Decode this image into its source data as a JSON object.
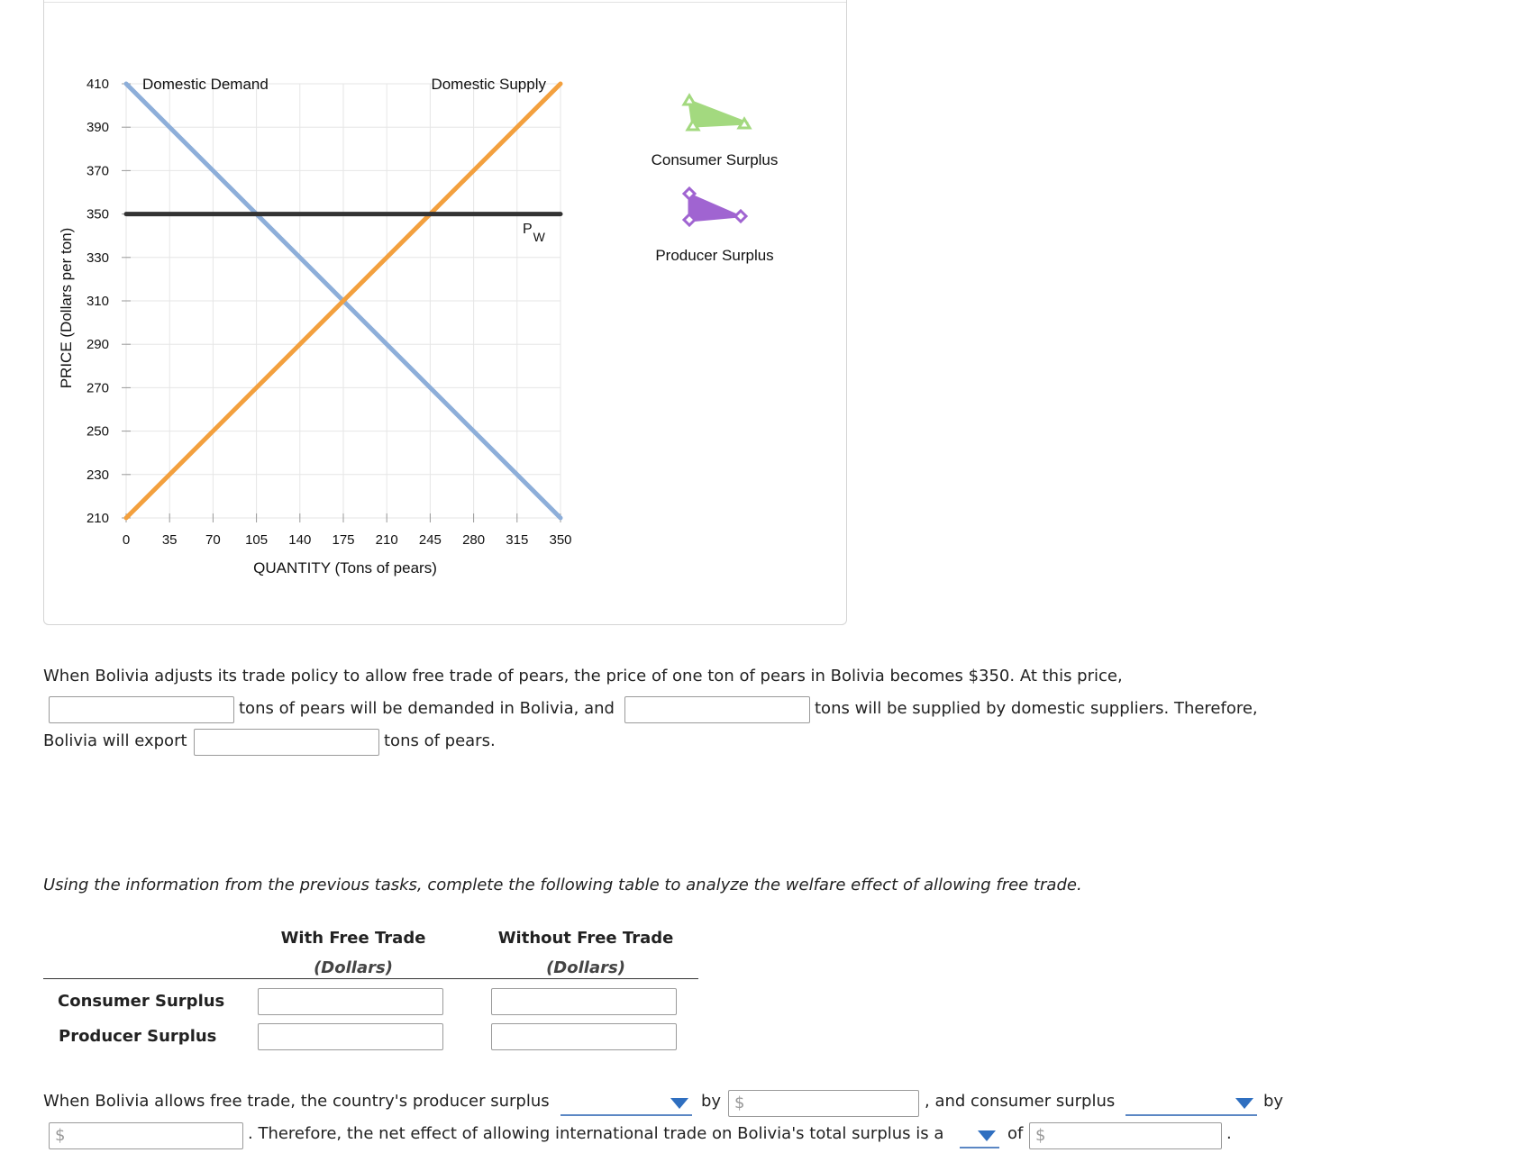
{
  "chart_data": {
    "type": "line",
    "xlabel": "QUANTITY (Tons of pears)",
    "ylabel": "PRICE (Dollars per ton)",
    "xlim": [
      0,
      350
    ],
    "ylim": [
      210,
      410
    ],
    "xticks": [
      0,
      35,
      70,
      105,
      140,
      175,
      210,
      245,
      280,
      315,
      350
    ],
    "yticks": [
      210,
      230,
      250,
      270,
      290,
      310,
      330,
      350,
      370,
      390,
      410
    ],
    "grid": true,
    "series": [
      {
        "name": "Domestic Demand",
        "color": "#8daed9",
        "x": [
          0,
          350
        ],
        "y": [
          410,
          210
        ]
      },
      {
        "name": "Domestic Supply",
        "color": "#f3a03e",
        "x": [
          0,
          350
        ],
        "y": [
          210,
          410
        ]
      },
      {
        "name": "P",
        "subscript": "W",
        "color": "#333333",
        "x": [
          0,
          350
        ],
        "y": [
          350,
          350
        ]
      }
    ],
    "legend": [
      {
        "label": "Consumer Surplus",
        "color": "#a3d97f",
        "marker": "triangle"
      },
      {
        "label": "Producer Surplus",
        "color": "#a064d1",
        "marker": "diamond"
      }
    ]
  },
  "question1": {
    "line1": "When Bolivia adjusts its trade policy to allow free trade of pears, the price of one ton of pears in Bolivia becomes $350. At this price,",
    "line2a": "tons of pears will be demanded in Bolivia, and",
    "line2b": "tons will be supplied by domestic suppliers. Therefore,",
    "line3a": "Bolivia will export",
    "line3b": "tons of pears."
  },
  "question2": {
    "instruction": "Using the information from the previous tasks, complete the following table to analyze the welfare effect of allowing free trade.",
    "col1_title": "With Free Trade",
    "col1_sub": "(Dollars)",
    "col2_title": "Without Free Trade",
    "col2_sub": "(Dollars)",
    "rows": [
      "Consumer Surplus",
      "Producer Surplus"
    ]
  },
  "question3": {
    "part1": "When Bolivia allows free trade, the country's producer surplus",
    "by1": "by",
    "part2": ", and consumer surplus",
    "by2": "by",
    "part3": ". Therefore, the net effect of allowing international trade on Bolivia's total surplus is a",
    "of": "of",
    "end": ".",
    "dollar": "$"
  }
}
